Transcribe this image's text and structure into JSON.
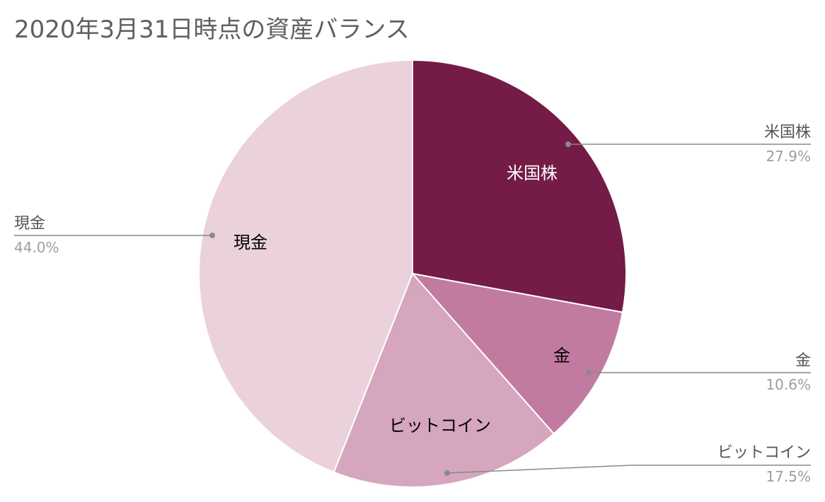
{
  "chart_data": {
    "type": "pie",
    "title": "2020年3月31日時点の資産バランス",
    "slices": [
      {
        "label": "米国株",
        "value": 27.9,
        "percent_label": "27.9%",
        "color": "#741b47",
        "text_color": "#ffffff"
      },
      {
        "label": "金",
        "value": 10.6,
        "percent_label": "10.6%",
        "color": "#c27ba0",
        "text_color": "#000000"
      },
      {
        "label": "ビットコイン",
        "value": 17.5,
        "percent_label": "17.5%",
        "color": "#d5a6bd",
        "text_color": "#000000"
      },
      {
        "label": "現金",
        "value": 44.0,
        "percent_label": "44.0%",
        "color": "#ead1dc",
        "text_color": "#000000"
      }
    ],
    "legend": "callouts-outside"
  }
}
